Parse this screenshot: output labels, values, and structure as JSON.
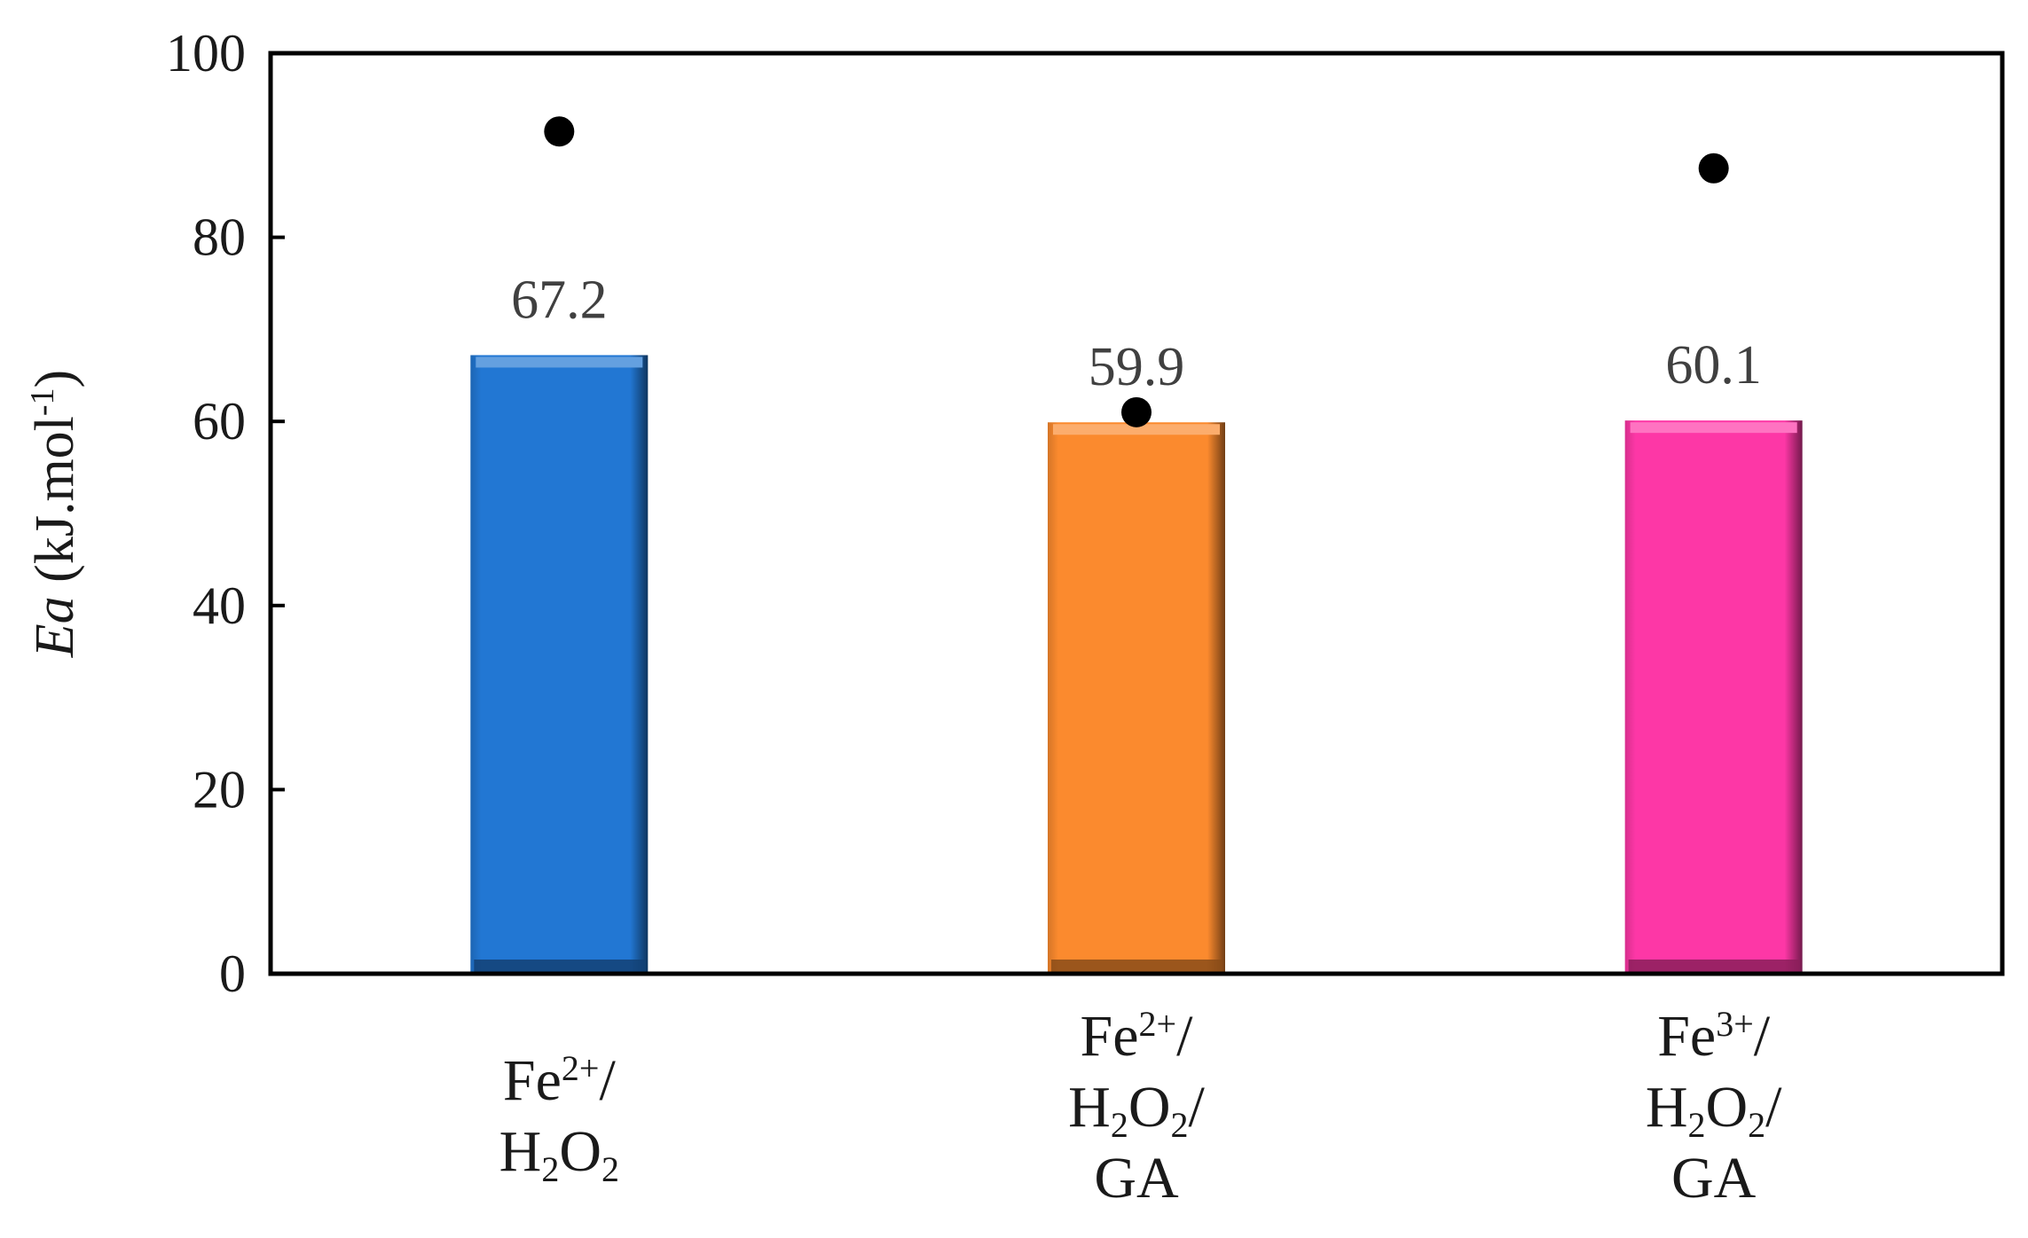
{
  "chart_data": {
    "type": "bar",
    "categories": [
      {
        "label": "Fe2+/ H2O2",
        "lines": [
          [
            {
              "t": "Fe"
            },
            {
              "t": "2+",
              "sup": true
            },
            {
              "t": "/"
            }
          ],
          [
            {
              "t": "H"
            },
            {
              "t": "2",
              "sub": true
            },
            {
              "t": "O"
            },
            {
              "t": "2",
              "sub": true
            }
          ]
        ]
      },
      {
        "label": "Fe2+/ H2O2/ GA",
        "lines": [
          [
            {
              "t": "Fe"
            },
            {
              "t": "2+",
              "sup": true
            },
            {
              "t": "/"
            }
          ],
          [
            {
              "t": "H"
            },
            {
              "t": "2",
              "sub": true
            },
            {
              "t": "O"
            },
            {
              "t": "2",
              "sub": true
            },
            {
              "t": "/"
            }
          ],
          [
            {
              "t": "GA"
            }
          ]
        ]
      },
      {
        "label": "Fe3+/ H2O2/ GA",
        "lines": [
          [
            {
              "t": "Fe"
            },
            {
              "t": "3+",
              "sup": true
            },
            {
              "t": "/"
            }
          ],
          [
            {
              "t": "H"
            },
            {
              "t": "2",
              "sub": true
            },
            {
              "t": "O"
            },
            {
              "t": "2",
              "sub": true
            },
            {
              "t": "/"
            }
          ],
          [
            {
              "t": "GA"
            }
          ]
        ]
      }
    ],
    "values": [
      67.2,
      59.9,
      60.1
    ],
    "value_labels": [
      "67.2",
      "59.9",
      "60.1"
    ],
    "bar_colors": [
      "#2277d3",
      "#fb8a2e",
      "#fd37a6"
    ],
    "points": [
      91.5,
      61,
      87.5
    ],
    "point_color": "#000000",
    "ylabel": {
      "italic": "Ea",
      "rest": " (kJ.mol",
      "sup": "-1",
      "close": ")"
    },
    "ylim": [
      0,
      100
    ],
    "yticks": [
      0,
      20,
      40,
      60,
      80,
      100
    ],
    "grid": false,
    "legend": "none"
  }
}
